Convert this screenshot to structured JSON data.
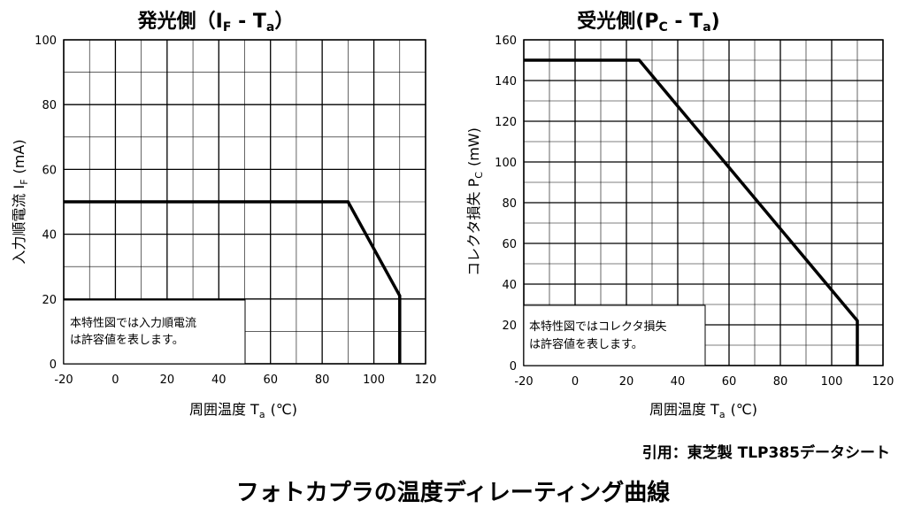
{
  "charts": [
    {
      "title": "発光側（I_F - T_a）",
      "title_parts": {
        "prefix": "発光側（",
        "sym": "I",
        "sub": "F",
        "mid": " - T",
        "sub2": "a",
        "suffix": "）"
      },
      "ylabel_main": "入力順電流 I",
      "ylabel_sub": "F",
      "ylabel_unit": "(mA)",
      "xlabel_main": "周囲温度 T",
      "xlabel_sub": "a",
      "xlabel_unit": "(℃)",
      "note_line1": "本特性図では入力順電流",
      "note_line2": "は許容値を表します。"
    },
    {
      "title": "受光側(P_C - T_a)",
      "title_parts": {
        "prefix": "受光側(",
        "sym": "P",
        "sub": "C",
        "mid": " - T",
        "sub2": "a",
        "suffix": ")"
      },
      "ylabel_main": "コレクタ損失 P",
      "ylabel_sub": "C",
      "ylabel_unit": "(mW)",
      "xlabel_main": "周囲温度 T",
      "xlabel_sub": "a",
      "xlabel_unit": "(℃)",
      "note_line1": "本特性図ではコレクタ損失",
      "note_line2": "は許容値を表します。"
    }
  ],
  "chart_data": [
    {
      "type": "line",
      "x": [
        -20,
        90,
        110,
        110
      ],
      "y": [
        50,
        50,
        21,
        0
      ],
      "xlim": [
        -20,
        120
      ],
      "ylim": [
        0,
        100
      ],
      "xticks": [
        "-20",
        "0",
        "20",
        "40",
        "60",
        "80",
        "100",
        "120"
      ],
      "yticks": [
        "0",
        "20",
        "40",
        "60",
        "80",
        "100"
      ],
      "grid": true
    },
    {
      "type": "line",
      "x": [
        -20,
        25,
        110,
        110
      ],
      "y": [
        150,
        150,
        22,
        0
      ],
      "xlim": [
        -20,
        120
      ],
      "ylim": [
        0,
        160
      ],
      "xticks": [
        "-20",
        "0",
        "20",
        "40",
        "60",
        "80",
        "100",
        "120"
      ],
      "yticks": [
        "0",
        "20",
        "40",
        "60",
        "80",
        "100",
        "120",
        "140",
        "160"
      ],
      "grid": true
    }
  ],
  "citation": "引用：東芝製 TLP385データシート",
  "footer_title": "フォトカプラの温度ディレーティング曲線"
}
